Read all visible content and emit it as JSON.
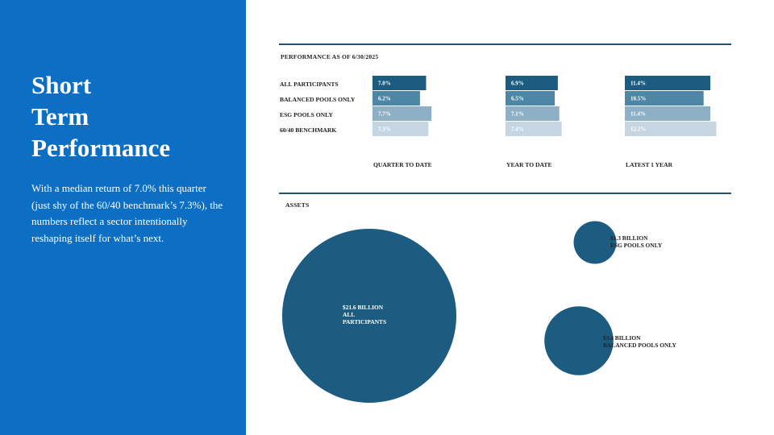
{
  "slide": {
    "title_lines": [
      "Short",
      "Term",
      "Performance"
    ],
    "body": "With a median return of 7.0% this quarter (just shy of the 60/40 benchmark’s 7.3%), the numbers reflect a sector intentionally reshaping itself for what’s next.",
    "colors": {
      "panel": "#0c6fc4",
      "rule": "#1c5578"
    }
  },
  "chart_data": [
    {
      "type": "bar",
      "title": "PERFORMANCE AS OF 6/30/2025",
      "categories": [
        "QUARTER TO DATE",
        "YEAR TO DATE",
        "LATEST 1 YEAR"
      ],
      "series": [
        {
          "name": "ALL PARTICIPANTS",
          "values": [
            7.0,
            6.9,
            11.4
          ],
          "labels": [
            "7.0%",
            "6.9%",
            "11.4%"
          ],
          "color": "#1c5c80"
        },
        {
          "name": "BALANCED POOLS ONLY",
          "values": [
            6.2,
            6.5,
            10.5
          ],
          "labels": [
            "6.2%",
            "6.5%",
            "10.5%"
          ],
          "color": "#4e86a6"
        },
        {
          "name": "ESG POOLS ONLY",
          "values": [
            7.7,
            7.1,
            11.4
          ],
          "labels": [
            "7.7%",
            "7.1%",
            "11.4%"
          ],
          "color": "#8db0c6"
        },
        {
          "name": "60/40 BENCHMARK",
          "values": [
            7.3,
            7.4,
            12.2
          ],
          "labels": [
            "7.3%",
            "7.4%",
            "12.2%"
          ],
          "color": "#c5d6e2"
        }
      ]
    },
    {
      "type": "bubble",
      "title": "ASSETS",
      "units": "billion",
      "color": "#1c5c80",
      "items": [
        {
          "value": 21.6,
          "label_lines": [
            "$21.6 BILLION",
            "ALL",
            "PARTICIPANTS"
          ]
        },
        {
          "value": 1.3,
          "label_lines": [
            "$1.3 BILLION",
            "ESG POOLS ONLY"
          ]
        },
        {
          "value": 3.4,
          "label_lines": [
            "$3.4 BILLION",
            "BALANCED POOLS ONLY"
          ]
        }
      ]
    }
  ]
}
